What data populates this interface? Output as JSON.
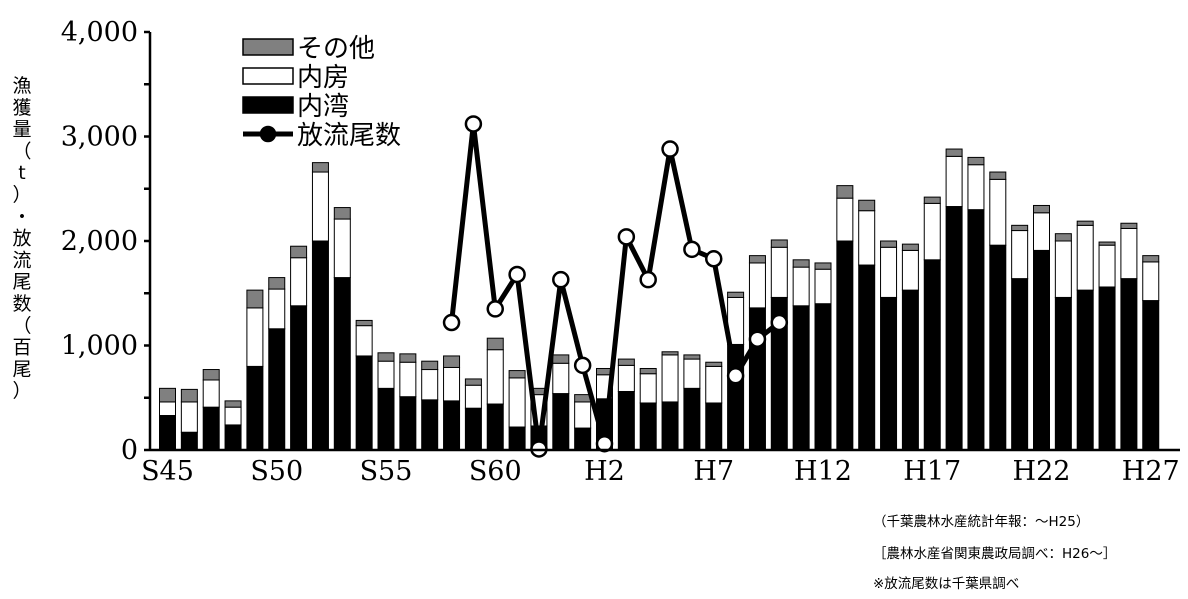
{
  "chart_data": {
    "type": "bar",
    "stacked": true,
    "categories": [
      "S45",
      "S46",
      "S47",
      "S48",
      "S49",
      "S50",
      "S51",
      "S52",
      "S53",
      "S54",
      "S55",
      "S56",
      "S57",
      "S58",
      "S59",
      "S60",
      "S61",
      "S62",
      "S63",
      "H1",
      "H2",
      "H3",
      "H4",
      "H5",
      "H6",
      "H7",
      "H8",
      "H9",
      "H10",
      "H11",
      "H12",
      "H13",
      "H14",
      "H15",
      "H16",
      "H17",
      "H18",
      "H19",
      "H20",
      "H21",
      "H22",
      "H23",
      "H24",
      "H25",
      "H26",
      "H27"
    ],
    "x_tick_labels": [
      "S45",
      "S50",
      "S55",
      "S60",
      "H2",
      "H7",
      "H12",
      "H17",
      "H22",
      "H27"
    ],
    "x_tick_label_categories": [
      "S45",
      "S50",
      "S55",
      "S60",
      "H2",
      "H7",
      "H12",
      "H17",
      "H22",
      "H27"
    ],
    "ylim": [
      0,
      4000
    ],
    "y_tick_values": [
      0,
      1000,
      2000,
      3000,
      4000
    ],
    "y_tick_labels": [
      "0",
      "1,000",
      "2,000",
      "3,000",
      "4,000"
    ],
    "ylabel": "漁獲量（t）・放流尾数（百尾）",
    "xlabel": "",
    "title": "",
    "series": [
      {
        "name": "内湾",
        "color": "#000000",
        "values": [
          330,
          170,
          410,
          240,
          800,
          1160,
          1380,
          2000,
          1650,
          900,
          590,
          510,
          480,
          470,
          400,
          440,
          220,
          230,
          540,
          210,
          490,
          560,
          450,
          460,
          590,
          450,
          1010,
          1360,
          1460,
          1380,
          1400,
          2000,
          1770,
          1460,
          1530,
          1820,
          2330,
          2300,
          1960,
          1640,
          1910,
          1460,
          1530,
          1560,
          1640,
          1430
        ]
      },
      {
        "name": "内房",
        "color": "#ffffff",
        "values": [
          130,
          290,
          260,
          170,
          560,
          380,
          460,
          660,
          560,
          290,
          260,
          330,
          290,
          320,
          220,
          520,
          470,
          300,
          290,
          250,
          230,
          250,
          280,
          450,
          280,
          350,
          450,
          430,
          480,
          370,
          330,
          410,
          520,
          480,
          380,
          540,
          480,
          430,
          630,
          460,
          360,
          540,
          620,
          400,
          480,
          370
        ]
      },
      {
        "name": "その他",
        "color": "#808080",
        "values": [
          130,
          120,
          100,
          60,
          170,
          110,
          110,
          90,
          110,
          50,
          80,
          80,
          80,
          110,
          60,
          110,
          70,
          60,
          80,
          70,
          60,
          60,
          50,
          30,
          40,
          40,
          50,
          70,
          70,
          70,
          60,
          120,
          100,
          60,
          60,
          60,
          70,
          70,
          70,
          50,
          70,
          70,
          40,
          30,
          50,
          60
        ]
      }
    ],
    "line_series": {
      "name": "放流尾数",
      "color": "#000000",
      "points": [
        {
          "x": "S58",
          "y": 1220
        },
        {
          "x": "S59",
          "y": 3120
        },
        {
          "x": "S60",
          "y": 1350
        },
        {
          "x": "S61",
          "y": 1680
        },
        {
          "x": "S62",
          "y": 10
        },
        {
          "x": "S63",
          "y": 1630
        },
        {
          "x": "H1",
          "y": 810
        },
        {
          "x": "H2",
          "y": 60
        },
        {
          "x": "H3",
          "y": 2040
        },
        {
          "x": "H4",
          "y": 1630
        },
        {
          "x": "H5",
          "y": 2880
        },
        {
          "x": "H6",
          "y": 1920
        },
        {
          "x": "H7",
          "y": 1830
        },
        {
          "x": "H8",
          "y": 710
        },
        {
          "x": "H9",
          "y": 1060
        },
        {
          "x": "H10",
          "y": 1220
        }
      ]
    },
    "legend": {
      "position": "top-left",
      "entries": [
        "その他",
        "内房",
        "内湾",
        "放流尾数"
      ]
    },
    "grid": false,
    "notes": [
      "（千葉農林水産統計年報：～H25）",
      "［農林水産省関東農政局調べ：H26～］",
      "※放流尾数は千葉県調べ"
    ]
  }
}
